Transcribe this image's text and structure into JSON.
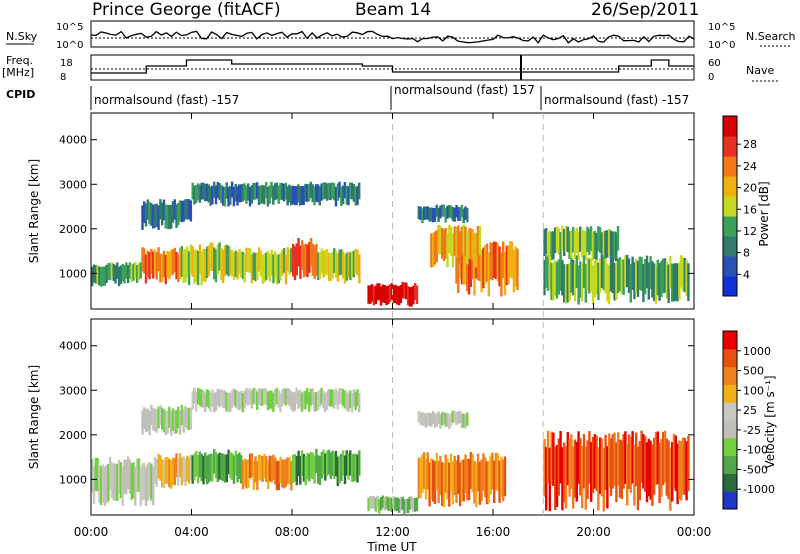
{
  "header": {
    "station": "Prince George (fitACF)",
    "beam": "Beam 14",
    "date": "26/Sep/2011"
  },
  "strips": {
    "nsky_label": "N.Sky",
    "nsky_ticks": [
      "10^5",
      "10^0"
    ],
    "nsearch_label": "N.Search",
    "nsearch_ticks": [
      "10^5",
      "10^0"
    ],
    "freq_label": "Freq.",
    "freq_unit": "[MHz]",
    "freq_ticks": [
      "18",
      "8"
    ],
    "nave_label": "Nave",
    "nave_ticks": [
      "60",
      "0"
    ],
    "cpid_label": "CPID",
    "cpid_segments": [
      {
        "start": "00:00",
        "text": "normalsound (fast) -157"
      },
      {
        "start": "12:00",
        "text": "normalsound (fast) 157"
      },
      {
        "start": "18:00",
        "text": "normalsound (fast) -157"
      }
    ]
  },
  "colors": {
    "power": [
      "#1030d8",
      "#2a50b8",
      "#2f7a6a",
      "#3aa05a",
      "#c8d820",
      "#f0b010",
      "#f07818",
      "#e83020",
      "#d80000"
    ],
    "velocity": [
      "#2035c8",
      "#2d6a3a",
      "#50a848",
      "#70d040",
      "#c0c0b8",
      "#c8c8c0",
      "#f0b018",
      "#f08020",
      "#e85010",
      "#e80000"
    ]
  },
  "chart_data": [
    {
      "type": "heatmap",
      "name": "power",
      "xlabel": "Time UT",
      "ylabel": "Slant Range [km]",
      "x_ticks": [
        "00:00",
        "04:00",
        "08:00",
        "12:00",
        "16:00",
        "20:00",
        "00:00"
      ],
      "x_range_hours": [
        0,
        24
      ],
      "y_ticks": [
        1000,
        2000,
        3000,
        4000
      ],
      "ylim": [
        200,
        4600
      ],
      "colorbar_label": "Power [dB]",
      "colorbar_ticks": [
        4,
        8,
        12,
        16,
        20,
        24,
        28
      ],
      "bands": [
        {
          "t0": 0.0,
          "t1": 2.0,
          "r0": 800,
          "r1": 1200,
          "level": 3
        },
        {
          "t0": 2.0,
          "t1": 3.5,
          "r0": 900,
          "r1": 1500,
          "level": 6
        },
        {
          "t0": 3.5,
          "t1": 5.5,
          "r0": 900,
          "r1": 1600,
          "level": 4
        },
        {
          "t0": 5.5,
          "t1": 8.0,
          "r0": 900,
          "r1": 1500,
          "level": 4
        },
        {
          "t0": 8.0,
          "t1": 9.0,
          "r0": 1000,
          "r1": 1700,
          "level": 7
        },
        {
          "t0": 9.0,
          "t1": 10.7,
          "r0": 900,
          "r1": 1500,
          "level": 4
        },
        {
          "t0": 4.0,
          "t1": 10.7,
          "r0": 2600,
          "r1": 3000,
          "level": 2
        },
        {
          "t0": 2.0,
          "t1": 4.0,
          "r0": 2100,
          "r1": 2600,
          "level": 2
        },
        {
          "t0": 11.0,
          "t1": 13.0,
          "r0": 350,
          "r1": 750,
          "level": 8
        },
        {
          "t0": 13.0,
          "t1": 15.0,
          "r0": 2200,
          "r1": 2500,
          "level": 2
        },
        {
          "t0": 14.5,
          "t1": 17.0,
          "r0": 700,
          "r1": 1600,
          "level": 6
        },
        {
          "t0": 13.5,
          "t1": 15.5,
          "r0": 1300,
          "r1": 2000,
          "level": 5
        },
        {
          "t0": 18.0,
          "t1": 21.0,
          "r0": 1400,
          "r1": 2000,
          "level": 3
        },
        {
          "t0": 18.0,
          "t1": 23.8,
          "r0": 500,
          "r1": 1300,
          "level": 3
        }
      ]
    },
    {
      "type": "heatmap",
      "name": "velocity",
      "xlabel": "Time UT",
      "ylabel": "Slant Range [km]",
      "x_ticks": [
        "00:00",
        "04:00",
        "08:00",
        "12:00",
        "16:00",
        "20:00",
        "00:00"
      ],
      "x_range_hours": [
        0,
        24
      ],
      "y_ticks": [
        1000,
        2000,
        3000,
        4000
      ],
      "ylim": [
        200,
        4600
      ],
      "colorbar_label": "Velocity [m s⁻¹]",
      "colorbar_ticks": [
        1000,
        500,
        100,
        25,
        -25,
        -100,
        -500,
        -1000
      ],
      "bands": [
        {
          "t0": 0.0,
          "t1": 2.5,
          "r0": 600,
          "r1": 1400,
          "level": 4
        },
        {
          "t0": 2.5,
          "t1": 4.0,
          "r0": 900,
          "r1": 1500,
          "level": 6
        },
        {
          "t0": 4.0,
          "t1": 6.0,
          "r0": 1000,
          "r1": 1600,
          "level": 2
        },
        {
          "t0": 6.0,
          "t1": 8.0,
          "r0": 900,
          "r1": 1500,
          "level": 7
        },
        {
          "t0": 8.0,
          "t1": 10.7,
          "r0": 1000,
          "r1": 1600,
          "level": 2
        },
        {
          "t0": 4.0,
          "t1": 10.7,
          "r0": 2600,
          "r1": 3000,
          "level": 4
        },
        {
          "t0": 2.0,
          "t1": 4.0,
          "r0": 2100,
          "r1": 2600,
          "level": 4
        },
        {
          "t0": 11.0,
          "t1": 13.0,
          "r0": 300,
          "r1": 600,
          "level": 3
        },
        {
          "t0": 13.0,
          "t1": 16.5,
          "r0": 600,
          "r1": 1500,
          "level": 7
        },
        {
          "t0": 13.0,
          "t1": 15.0,
          "r0": 2200,
          "r1": 2500,
          "level": 4
        },
        {
          "t0": 18.0,
          "t1": 23.8,
          "r0": 600,
          "r1": 1900,
          "level": 8
        }
      ]
    }
  ]
}
